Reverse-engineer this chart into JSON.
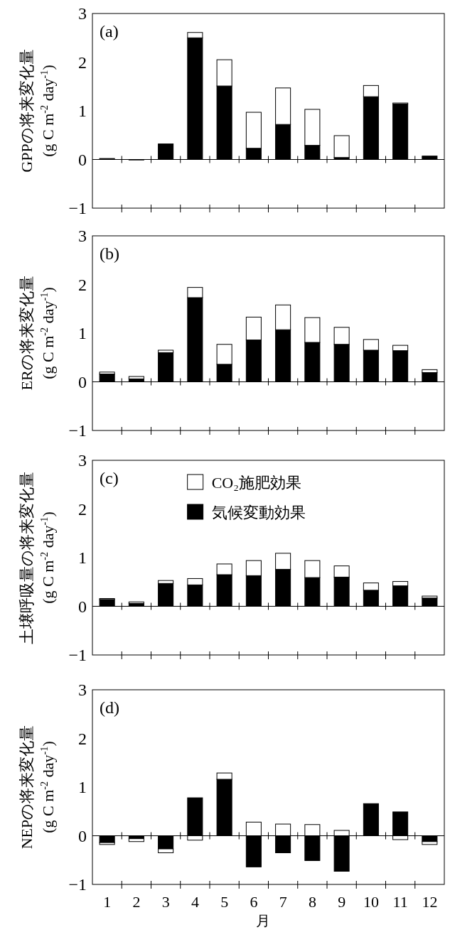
{
  "chart_data": [
    {
      "type": "bar",
      "stacked": true,
      "title": "(a)",
      "ylabel": "GPPの将来変化量\n(g C m$^{-2}$ day$^{-1}$)",
      "categories": [
        null,
        null,
        null,
        null,
        null,
        null,
        null,
        null,
        null,
        null,
        null,
        null
      ],
      "tick_labels": "y",
      "ylim": [
        -1,
        3
      ],
      "yticks": [
        -1,
        0,
        1,
        2,
        3
      ],
      "series": [
        {
          "color": "#000000",
          "values": [
            0.02,
            -0.01,
            0.32,
            2.5,
            1.51,
            0.23,
            0.72,
            0.29,
            0.04,
            1.29,
            1.14,
            0.07
          ]
        },
        {
          "color": "#ffffff",
          "values": [
            0,
            0,
            0,
            0.11,
            0.54,
            0.74,
            0.75,
            0.74,
            0.45,
            0.23,
            0.02,
            0
          ]
        }
      ]
    },
    {
      "type": "bar",
      "stacked": true,
      "title": "(b)",
      "ylabel": "ERの将来変化量\n(g C m$^{-2}$ day$^{-1}$)",
      "categories": [
        null,
        null,
        null,
        null,
        null,
        null,
        null,
        null,
        null,
        null,
        null,
        null
      ],
      "tick_labels": "y",
      "ylim": [
        -1,
        3
      ],
      "yticks": [
        -1,
        0,
        1,
        2,
        3
      ],
      "series": [
        {
          "color": "#000000",
          "values": [
            0.16,
            0.06,
            0.6,
            1.73,
            0.36,
            0.86,
            1.07,
            0.81,
            0.77,
            0.65,
            0.64,
            0.19
          ]
        },
        {
          "color": "#ffffff",
          "values": [
            0.04,
            0.05,
            0.05,
            0.21,
            0.41,
            0.47,
            0.51,
            0.51,
            0.35,
            0.22,
            0.11,
            0.06
          ]
        }
      ]
    },
    {
      "type": "bar",
      "stacked": true,
      "title": "(c)",
      "ylabel": "土壌呼吸量の将来変化量\n(g C m$^{-2}$ day$^{-1}$)",
      "categories": [
        null,
        null,
        null,
        null,
        null,
        null,
        null,
        null,
        null,
        null,
        null,
        null
      ],
      "tick_labels": "y",
      "ylim": [
        -1,
        3
      ],
      "yticks": [
        -1,
        0,
        1,
        2,
        3
      ],
      "legend": "top",
      "series": [
        {
          "name": "気候変動効果",
          "color": "#000000",
          "values": [
            0.14,
            0.06,
            0.47,
            0.44,
            0.65,
            0.63,
            0.76,
            0.59,
            0.6,
            0.33,
            0.42,
            0.17
          ]
        },
        {
          "name": "CO₂施肥効果",
          "color": "#ffffff",
          "values": [
            0.02,
            0.03,
            0.06,
            0.13,
            0.22,
            0.31,
            0.33,
            0.35,
            0.23,
            0.15,
            0.09,
            0.04
          ]
        }
      ]
    },
    {
      "type": "bar",
      "stacked": true,
      "title": "(d)",
      "ylabel": "NEPの将来変化量\n(g C m$^{-2}$ day$^{-1}$)",
      "xlabel": "月",
      "categories": [
        "1",
        "2",
        "3",
        "4",
        "5",
        "6",
        "7",
        "8",
        "9",
        "10",
        "11",
        "12"
      ],
      "ylim": [
        -1,
        3
      ],
      "yticks": [
        -1,
        0,
        1,
        2,
        3
      ],
      "series": [
        {
          "color": "#000000",
          "values": [
            -0.14,
            -0.06,
            -0.27,
            0.78,
            1.16,
            -0.64,
            -0.35,
            -0.51,
            -0.73,
            0.66,
            0.49,
            -0.12
          ]
        },
        {
          "color": "#ffffff",
          "values": [
            -0.04,
            -0.06,
            -0.08,
            -0.09,
            0.13,
            0.28,
            0.24,
            0.23,
            0.11,
            0,
            -0.08,
            -0.06
          ]
        }
      ]
    }
  ]
}
